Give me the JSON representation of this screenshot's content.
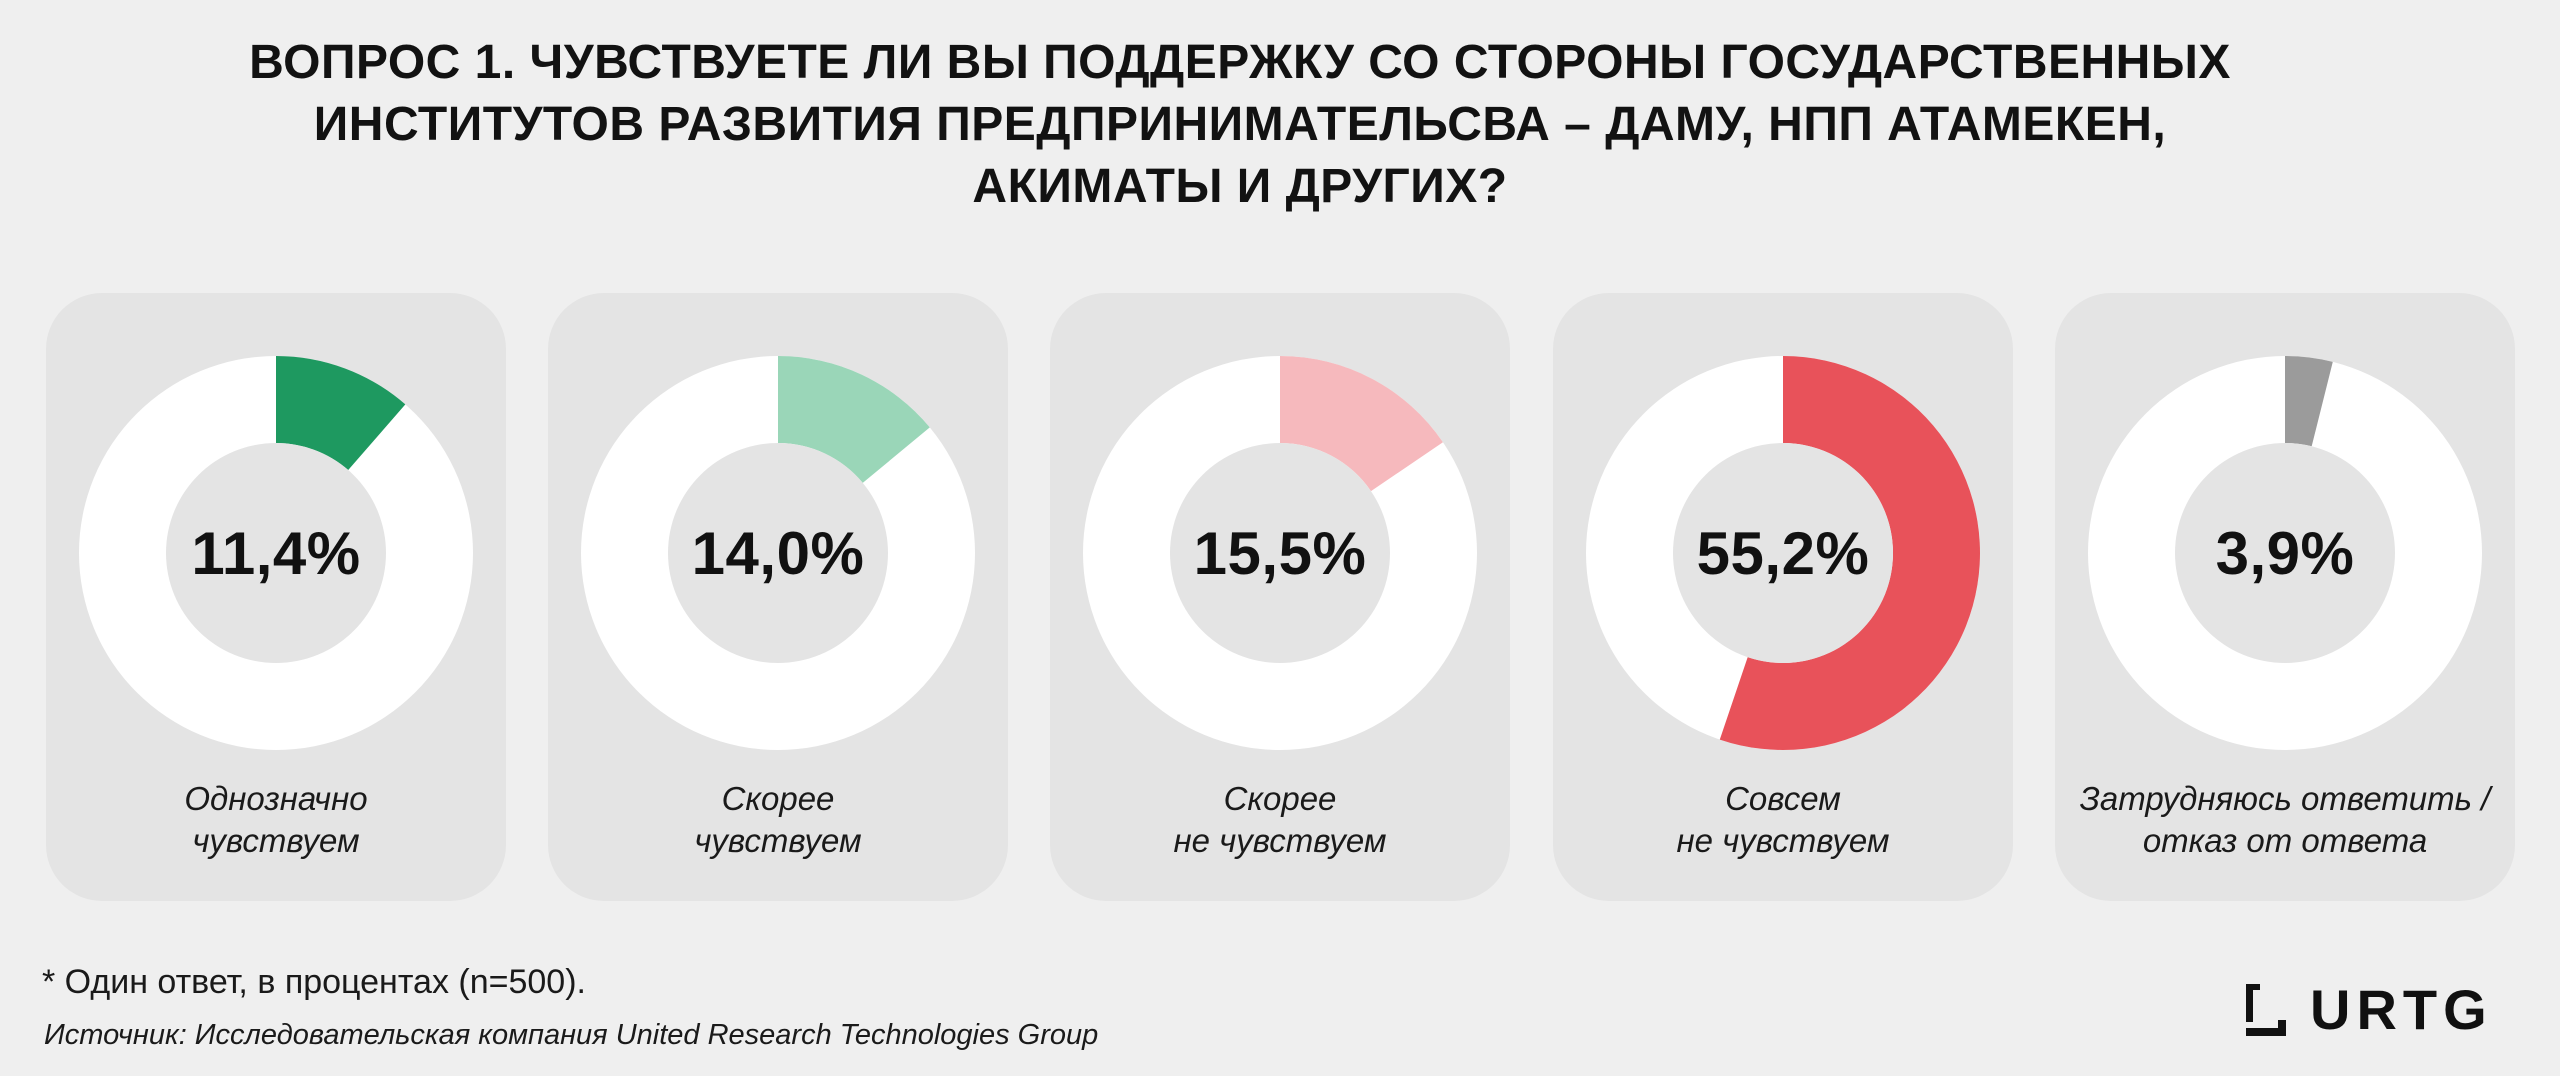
{
  "title_lines": [
    "ВОПРОС 1. ЧУВСТВУЕТЕ ЛИ ВЫ ПОДДЕРЖКУ СО СТОРОНЫ ГОСУДАРСТВЕННЫХ",
    "ИНСТИТУТОВ РАЗВИТИЯ ПРЕДПРИНИМАТЕЛЬСВА – ДАМУ, НПП АТАМЕКЕН,",
    "АКИМАТЫ И ДРУГИХ?"
  ],
  "chart_data": {
    "type": "pie",
    "title": "ВОПРОС 1. ЧУВСТВУЕТЕ ЛИ ВЫ ПОДДЕРЖКУ СО СТОРОНЫ ГОСУДАРСТВЕННЫХ ИНСТИТУТОВ РАЗВИТИЯ ПРЕДПРИНИМАТЕЛЬСВА – ДАМУ, НПП АТАМЕКЕН, АКИМАТЫ И ДРУГИХ?",
    "items": [
      {
        "value": 11.4,
        "value_label": "11,4%",
        "label_lines": [
          "Однозначно",
          "чувствуем"
        ],
        "color": "#1e9960"
      },
      {
        "value": 14.0,
        "value_label": "14,0%",
        "label_lines": [
          "Скорее",
          "чувствуем"
        ],
        "color": "#9ad6b8"
      },
      {
        "value": 15.5,
        "value_label": "15,5%",
        "label_lines": [
          "Скорее",
          "не чувствуем"
        ],
        "color": "#f6b9bd"
      },
      {
        "value": 55.2,
        "value_label": "55,2%",
        "label_lines": [
          "Совсем",
          "не чувствуем"
        ],
        "color": "#e8525a"
      },
      {
        "value": 3.9,
        "value_label": "3,9%",
        "label_lines": [
          "Затрудняюсь ответить /",
          "отказ от ответа"
        ],
        "color": "#9b9b9b"
      }
    ],
    "track_color": "#ffffff"
  },
  "footnote": "* Один ответ, в процентах (n=500).",
  "source": "Источник: Исследовательская компания United Research Technologies Group",
  "logo_text": "URTG"
}
